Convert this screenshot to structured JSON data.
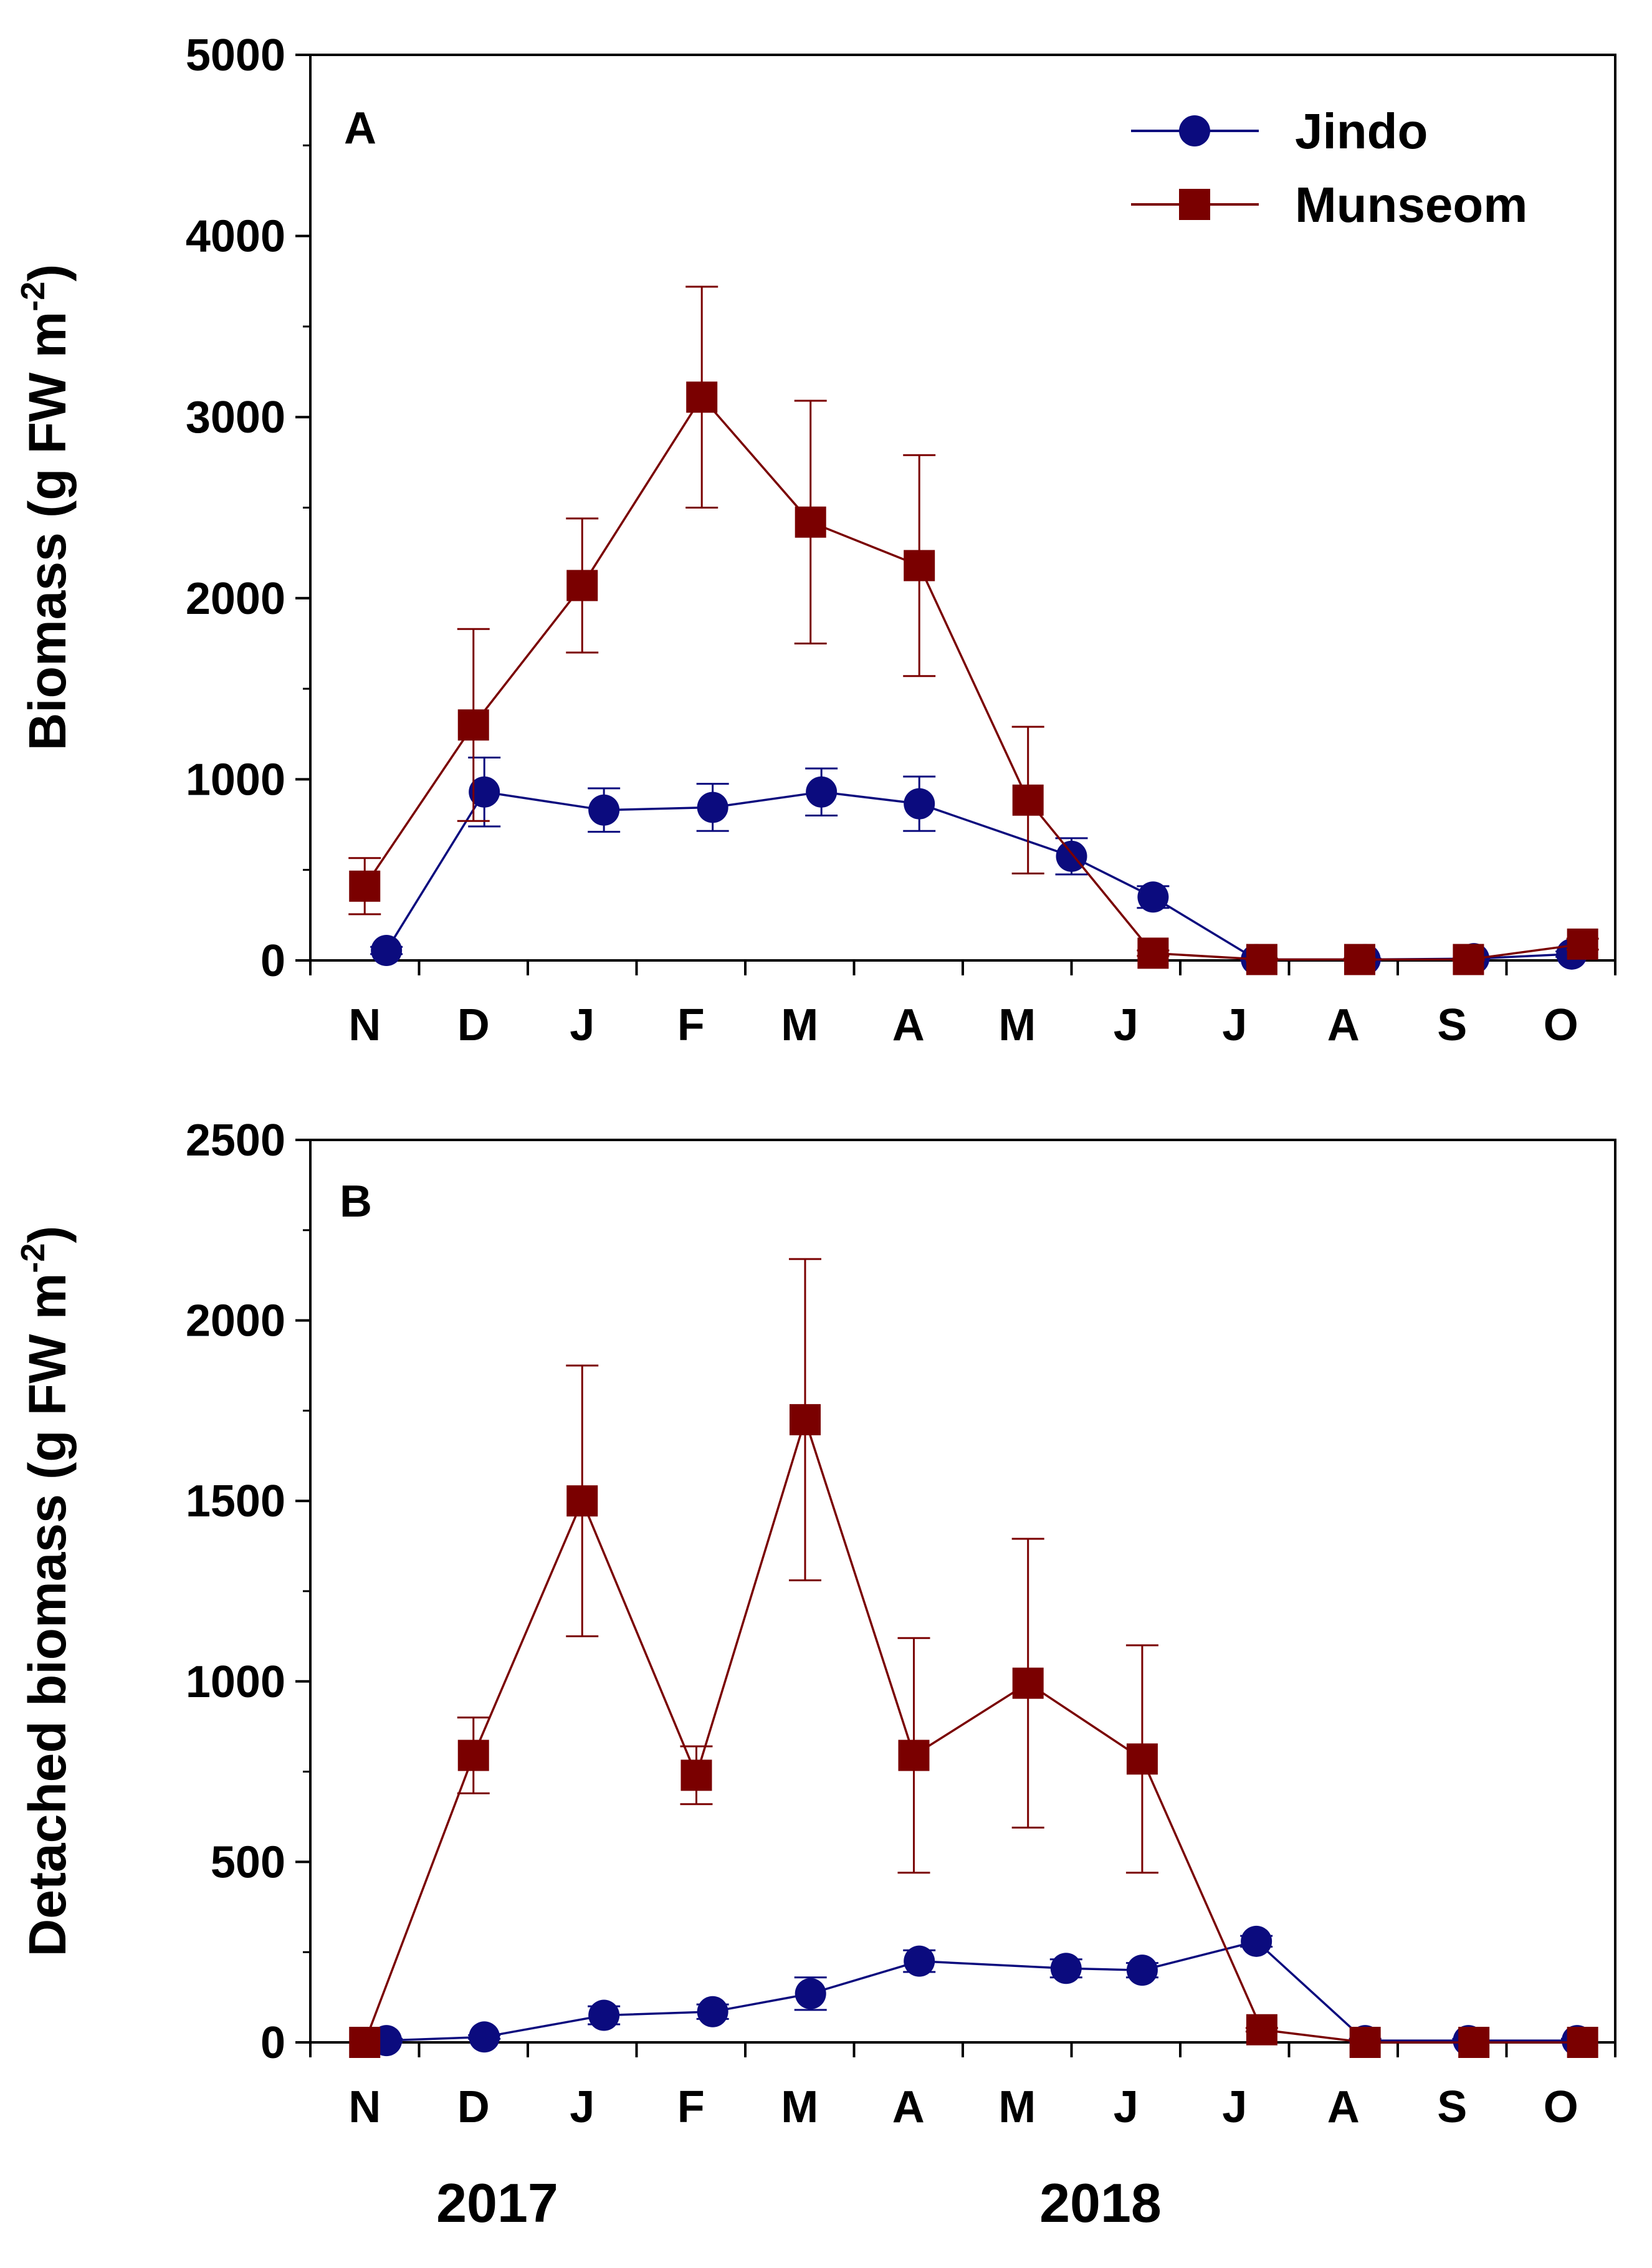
{
  "colors": {
    "jindo": "#0b0b7e",
    "munseom": "#7a0000",
    "axis": "#000000"
  },
  "legend": [
    {
      "name": "Jindo",
      "marker": "circle",
      "color": "#0b0b7e"
    },
    {
      "name": "Munseom",
      "marker": "square",
      "color": "#7a0000"
    }
  ],
  "year_labels": [
    "2017",
    "2018"
  ],
  "chart_data": [
    {
      "type": "line",
      "panel": "A",
      "title": "",
      "xlabel": "",
      "ylabel": "Biomass (g FW m⁻²)",
      "ylabel_main": "Biomass (g FW m",
      "ylabel_sup": "-2",
      "ylabel_tail": ")",
      "ylim": [
        0,
        5000
      ],
      "y_ticks": [
        0,
        1000,
        2000,
        3000,
        4000,
        5000
      ],
      "y_tick_labels": [
        "0",
        "1000",
        "2000",
        "3000",
        "4000",
        "5000"
      ],
      "y_minor_step": 500,
      "xlim": [
        0,
        12
      ],
      "x_tick_labels": [
        "N",
        "D",
        "J",
        "F",
        "M",
        "A",
        "M",
        "J",
        "J",
        "A",
        "S",
        "O"
      ],
      "series": [
        {
          "name": "Jindo",
          "x": [
            0.7,
            1.6,
            2.7,
            3.7,
            4.7,
            5.6,
            7.0,
            7.75,
            8.7,
            9.7,
            10.7,
            11.6
          ],
          "values": [
            55,
            930,
            830,
            845,
            930,
            865,
            575,
            350,
            5,
            5,
            10,
            35
          ],
          "errors": [
            20,
            190,
            120,
            130,
            130,
            150,
            100,
            60,
            5,
            5,
            5,
            15
          ]
        },
        {
          "name": "Munseom",
          "x": [
            0.5,
            1.5,
            2.5,
            3.6,
            4.6,
            5.6,
            6.6,
            7.75,
            8.75,
            9.65,
            10.65,
            11.7
          ],
          "values": [
            410,
            1300,
            2070,
            3110,
            2420,
            2180,
            885,
            40,
            5,
            5,
            5,
            90
          ],
          "errors": [
            155,
            530,
            370,
            610,
            670,
            610,
            405,
            15,
            5,
            5,
            5,
            30
          ]
        }
      ]
    },
    {
      "type": "line",
      "panel": "B",
      "title": "",
      "xlabel": "",
      "ylabel": "Detached biomass (g FW m⁻²)",
      "ylabel_main": "Detached biomass (g FW m",
      "ylabel_sup": "-2",
      "ylabel_tail": ")",
      "ylim": [
        0,
        2500
      ],
      "y_ticks": [
        0,
        500,
        1000,
        1500,
        2000,
        2500
      ],
      "y_tick_labels": [
        "0",
        "500",
        "1000",
        "1500",
        "2000",
        "2500"
      ],
      "y_minor_step": 250,
      "xlim": [
        0,
        12
      ],
      "x_tick_labels": [
        "N",
        "D",
        "J",
        "F",
        "M",
        "A",
        "M",
        "J",
        "J",
        "A",
        "S",
        "O"
      ],
      "series": [
        {
          "name": "Jindo",
          "x": [
            0.7,
            1.6,
            2.7,
            3.7,
            4.6,
            5.6,
            6.95,
            7.65,
            8.7,
            9.7,
            10.65,
            11.65
          ],
          "values": [
            5,
            15,
            75,
            85,
            135,
            225,
            205,
            200,
            280,
            5,
            5,
            5
          ],
          "errors": [
            5,
            5,
            25,
            20,
            45,
            30,
            25,
            20,
            15,
            5,
            5,
            5
          ]
        },
        {
          "name": "Munseom",
          "x": [
            0.5,
            1.5,
            2.5,
            3.55,
            4.55,
            5.55,
            6.6,
            7.65,
            8.75,
            9.7,
            10.7,
            11.7
          ],
          "values": [
            0,
            795,
            1500,
            740,
            1725,
            795,
            995,
            785,
            35,
            0,
            0,
            0
          ],
          "errors": [
            0,
            105,
            375,
            80,
            445,
            325,
            400,
            315,
            5,
            0,
            0,
            0
          ]
        }
      ]
    }
  ]
}
